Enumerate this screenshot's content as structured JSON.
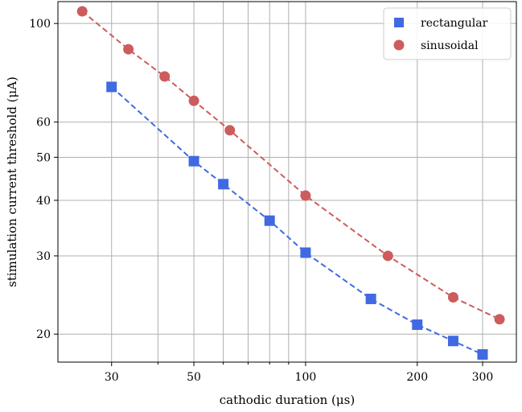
{
  "chart_data": {
    "type": "scatter",
    "xlabel": "cathodic duration (μs)",
    "ylabel": "stimulation current threshold (μA)",
    "xscale": "log",
    "yscale": "log",
    "xlim": [
      21.5,
      370
    ],
    "ylim": [
      17.3,
      112
    ],
    "grid": "on",
    "legend_position": "top-right",
    "x_ticks": [
      30,
      50,
      100,
      200,
      300
    ],
    "x_tick_labels": [
      "30",
      "50",
      "100",
      "200",
      "300"
    ],
    "y_ticks": [
      20,
      30,
      40,
      50,
      60,
      100
    ],
    "y_tick_labels": [
      "20",
      "30",
      "40",
      "50",
      "60",
      "100"
    ],
    "series": [
      {
        "name": "rectangular",
        "marker": "square",
        "color": "#4169e1",
        "line_style": "dashed",
        "x": [
          30,
          50,
          60,
          80,
          100,
          150,
          200,
          250,
          300
        ],
        "y": [
          72,
          49,
          43.5,
          36,
          30.5,
          24,
          21,
          19.3,
          18
        ]
      },
      {
        "name": "sinusoidal",
        "marker": "circle",
        "color": "#cd5c5c",
        "line_style": "dashed",
        "x": [
          25,
          33.3,
          41.7,
          50,
          62.5,
          100,
          166.7,
          250,
          333.3
        ],
        "y": [
          106.5,
          87.5,
          76,
          67,
          57.5,
          41,
          30,
          24.2,
          21.6
        ]
      }
    ]
  }
}
